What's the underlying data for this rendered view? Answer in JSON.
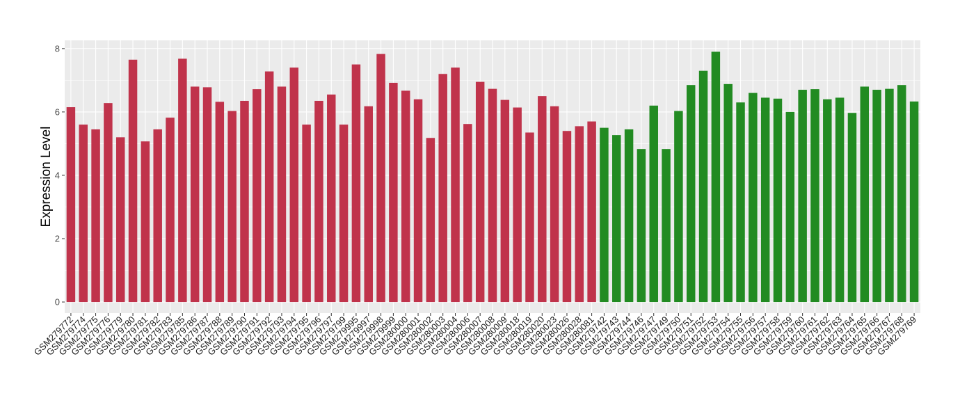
{
  "chart_data": {
    "type": "bar",
    "y_label": "Expression Level",
    "categories": [
      "GSM279772",
      "GSM279774",
      "GSM279775",
      "GSM279776",
      "GSM279779",
      "GSM279780",
      "GSM279781",
      "GSM279782",
      "GSM279783",
      "GSM279785",
      "GSM279786",
      "GSM279787",
      "GSM279788",
      "GSM279789",
      "GSM279790",
      "GSM279791",
      "GSM279792",
      "GSM279793",
      "GSM279794",
      "GSM279795",
      "GSM279796",
      "GSM279797",
      "GSM279799",
      "GSM279995",
      "GSM279997",
      "GSM279998",
      "GSM279999",
      "GSM280000",
      "GSM280001",
      "GSM280002",
      "GSM280003",
      "GSM280004",
      "GSM280006",
      "GSM280007",
      "GSM280008",
      "GSM280009",
      "GSM280018",
      "GSM280019",
      "GSM280020",
      "GSM280023",
      "GSM280026",
      "GSM280028",
      "GSM280081",
      "GSM279742",
      "GSM279743",
      "GSM279744",
      "GSM279746",
      "GSM279747",
      "GSM279749",
      "GSM279750",
      "GSM279751",
      "GSM279752",
      "GSM279753",
      "GSM279754",
      "GSM279755",
      "GSM279756",
      "GSM279757",
      "GSM279758",
      "GSM279759",
      "GSM279760",
      "GSM279761",
      "GSM279762",
      "GSM279763",
      "GSM279764",
      "GSM279765",
      "GSM279766",
      "GSM279767",
      "GSM279768",
      "GSM279769"
    ],
    "values": [
      6.15,
      5.6,
      5.45,
      6.28,
      5.2,
      7.65,
      5.07,
      5.45,
      5.82,
      7.68,
      6.8,
      6.78,
      6.32,
      6.03,
      6.35,
      6.72,
      7.28,
      6.8,
      7.4,
      5.6,
      6.35,
      6.55,
      5.6,
      7.5,
      6.18,
      7.83,
      6.92,
      6.67,
      6.4,
      5.18,
      7.2,
      7.4,
      5.62,
      6.95,
      6.73,
      6.38,
      6.14,
      5.35,
      6.5,
      6.18,
      5.4,
      5.55,
      5.7,
      5.5,
      5.27,
      5.45,
      4.83,
      6.2,
      4.83,
      6.03,
      6.85,
      7.3,
      7.9,
      6.88,
      6.3,
      6.6,
      6.45,
      6.42,
      6.0,
      6.7,
      6.72,
      6.4,
      6.45,
      5.97,
      6.8,
      6.7,
      6.73,
      6.85,
      6.33
    ],
    "colors": [
      "#c0334b",
      "#c0334b",
      "#c0334b",
      "#c0334b",
      "#c0334b",
      "#c0334b",
      "#c0334b",
      "#c0334b",
      "#c0334b",
      "#c0334b",
      "#c0334b",
      "#c0334b",
      "#c0334b",
      "#c0334b",
      "#c0334b",
      "#c0334b",
      "#c0334b",
      "#c0334b",
      "#c0334b",
      "#c0334b",
      "#c0334b",
      "#c0334b",
      "#c0334b",
      "#c0334b",
      "#c0334b",
      "#c0334b",
      "#c0334b",
      "#c0334b",
      "#c0334b",
      "#c0334b",
      "#c0334b",
      "#c0334b",
      "#c0334b",
      "#c0334b",
      "#c0334b",
      "#c0334b",
      "#c0334b",
      "#c0334b",
      "#c0334b",
      "#c0334b",
      "#c0334b",
      "#c0334b",
      "#c0334b",
      "#228b22",
      "#228b22",
      "#228b22",
      "#228b22",
      "#228b22",
      "#228b22",
      "#228b22",
      "#228b22",
      "#228b22",
      "#228b22",
      "#228b22",
      "#228b22",
      "#228b22",
      "#228b22",
      "#228b22",
      "#228b22",
      "#228b22",
      "#228b22",
      "#228b22",
      "#228b22",
      "#228b22",
      "#228b22",
      "#228b22",
      "#228b22",
      "#228b22",
      "#228b22"
    ],
    "ylim": [
      -0.35,
      8.26
    ],
    "yticks": [
      0,
      2,
      4,
      6,
      8
    ],
    "grid": true
  }
}
